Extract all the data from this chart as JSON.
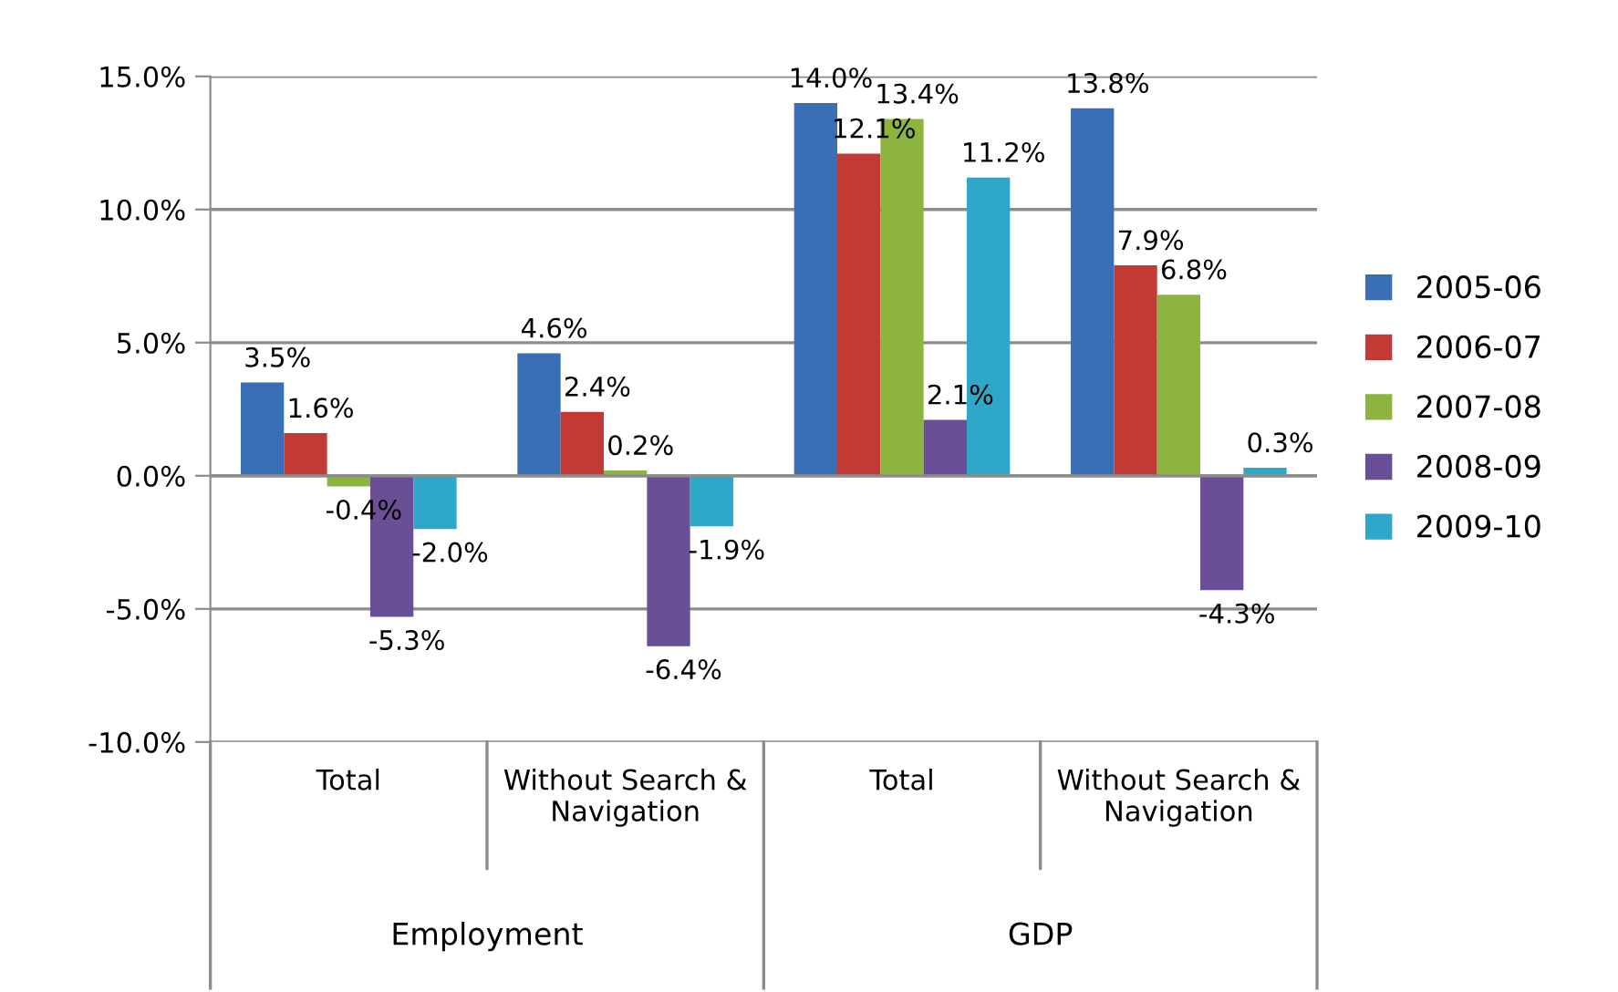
{
  "chart_data": {
    "type": "bar",
    "categories": [
      "Total",
      "Without Search &\nNavigation",
      "Total",
      "Without Search &\nNavigation"
    ],
    "annotations": [
      "Employment",
      "GDP"
    ],
    "series": [
      {
        "name": "2005-06",
        "color": "#3a6fb5",
        "values": [
          3.5,
          4.6,
          14.0,
          13.8
        ],
        "value_labels": [
          "3.5%",
          "4.6%",
          "14.0%",
          "13.8%"
        ]
      },
      {
        "name": "2006-07",
        "color": "#c23a36",
        "values": [
          1.6,
          2.4,
          12.1,
          7.9
        ],
        "value_labels": [
          "1.6%",
          "2.4%",
          "12.1%",
          "7.9%"
        ]
      },
      {
        "name": "2007-08",
        "color": "#8db43f",
        "values": [
          -0.4,
          0.2,
          13.4,
          6.8
        ],
        "value_labels": [
          "-0.4%",
          "0.2%",
          "13.4%",
          "6.8%"
        ]
      },
      {
        "name": "2008-09",
        "color": "#6b4f96",
        "values": [
          -5.3,
          -6.4,
          2.1,
          -4.3
        ],
        "value_labels": [
          "-5.3%",
          "-6.4%",
          "2.1%",
          "-4.3%"
        ]
      },
      {
        "name": "2009-10",
        "color": "#2ea7c8",
        "values": [
          -2.0,
          -1.9,
          11.2,
          0.3
        ],
        "value_labels": [
          "-2.0%",
          "-1.9%",
          "11.2%",
          "0.3%"
        ]
      }
    ],
    "ylim": [
      -10,
      15
    ],
    "yticks": [
      {
        "value": -10,
        "label": "-10.0%"
      },
      {
        "value": -5,
        "label": "-5.0%"
      },
      {
        "value": 0,
        "label": "0.0%"
      },
      {
        "value": 5,
        "label": "5.0%"
      },
      {
        "value": 10,
        "label": "10.0%"
      },
      {
        "value": 15,
        "label": "15.0%"
      }
    ],
    "grid": "y",
    "legend": "right"
  }
}
